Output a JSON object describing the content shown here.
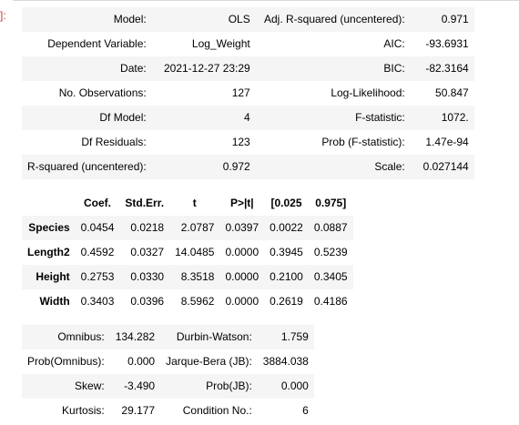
{
  "cell_prompt": {
    "text": "]:"
  },
  "summary_table": {
    "rows": [
      [
        "Model:",
        "OLS",
        "Adj. R-squared (uncentered):",
        "0.971"
      ],
      [
        "Dependent Variable:",
        "Log_Weight",
        "AIC:",
        "-93.6931"
      ],
      [
        "Date:",
        "2021-12-27 23:29",
        "BIC:",
        "-82.3164"
      ],
      [
        "No. Observations:",
        "127",
        "Log-Likelihood:",
        "50.847"
      ],
      [
        "Df Model:",
        "4",
        "F-statistic:",
        "1072."
      ],
      [
        "Df Residuals:",
        "123",
        "Prob (F-statistic):",
        "1.47e-94"
      ],
      [
        "R-squared (uncentered):",
        "0.972",
        "Scale:",
        "0.027144"
      ]
    ]
  },
  "coef_table": {
    "headers": [
      "",
      "Coef.",
      "Std.Err.",
      "t",
      "P>|t|",
      "[0.025",
      "0.975]"
    ],
    "rows": [
      [
        "Species",
        "0.0454",
        "0.0218",
        "2.0787",
        "0.0397",
        "0.0022",
        "0.0887"
      ],
      [
        "Length2",
        "0.4592",
        "0.0327",
        "14.0485",
        "0.0000",
        "0.3945",
        "0.5239"
      ],
      [
        "Height",
        "0.2753",
        "0.0330",
        "8.3518",
        "0.0000",
        "0.2100",
        "0.3405"
      ],
      [
        "Width",
        "0.3403",
        "0.0396",
        "8.5962",
        "0.0000",
        "0.2619",
        "0.4186"
      ]
    ]
  },
  "diag_table": {
    "rows": [
      [
        "Omnibus:",
        "134.282",
        "Durbin-Watson:",
        "1.759"
      ],
      [
        "Prob(Omnibus):",
        "0.000",
        "Jarque-Bera (JB):",
        "3884.038"
      ],
      [
        "Skew:",
        "-3.490",
        "Prob(JB):",
        "0.000"
      ],
      [
        "Kurtosis:",
        "29.177",
        "Condition No.:",
        "6"
      ]
    ]
  },
  "colors": {
    "prompt": "#c0392b",
    "stripe": "#f5f5f5"
  }
}
